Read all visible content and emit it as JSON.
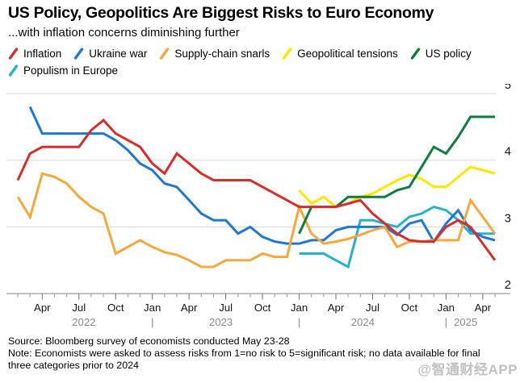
{
  "header": {
    "title": "US Policy, Geopolitics Are Biggest Risks to Euro Economy",
    "subtitle": "...with inflation concerns diminishing further"
  },
  "legend": {
    "items": [
      {
        "label": "Inflation",
        "color": "#d62e2b"
      },
      {
        "label": "Ukraine war",
        "color": "#1e78d2"
      },
      {
        "label": "Supply-chain snarls",
        "color": "#f6a83c"
      },
      {
        "label": "Geopolitical tensions",
        "color": "#ffe600"
      },
      {
        "label": "US policy",
        "color": "#0d7d3e"
      },
      {
        "label": "Populism in Europe",
        "color": "#26b2cf"
      }
    ]
  },
  "footer": {
    "source": "Source: Bloomberg survey of economists conducted May 23-28",
    "note": "Note: Economists were asked to assess risks from 1=no risk to 5=significant risk; no data available for final three categories prior to 2024"
  },
  "watermark": "@智通财经APP",
  "chart_data": {
    "type": "line",
    "title": "US Policy, Geopolitics Are Biggest Risks to Euro Economy",
    "subtitle": "...with inflation concerns diminishing further",
    "xlabel": "",
    "ylabel": "",
    "ylim": [
      2,
      5
    ],
    "grid": "horizontal",
    "legend_position": "top",
    "y_axis": {
      "min": 2,
      "max": 5,
      "ticks": [
        2,
        3,
        4,
        5
      ]
    },
    "month_labels": [
      "Feb 2022",
      "Mar 2022",
      "Apr 2022",
      "May 2022",
      "Jun 2022",
      "Jul 2022",
      "Aug 2022",
      "Sep 2022",
      "Oct 2022",
      "Nov 2022",
      "Dec 2022",
      "Jan 2023",
      "Feb 2023",
      "Mar 2023",
      "Apr 2023",
      "May 2023",
      "Jun 2023",
      "Jul 2023",
      "Aug 2023",
      "Sep 2023",
      "Oct 2023",
      "Nov 2023",
      "Dec 2023",
      "Jan 2024",
      "Feb 2024",
      "Mar 2024",
      "Apr 2024",
      "May 2024",
      "Jun 2024",
      "Jul 2024",
      "Aug 2024",
      "Sep 2024",
      "Oct 2024",
      "Nov 2024",
      "Dec 2024",
      "Jan 2025",
      "Feb 2025",
      "Mar 2025",
      "Apr 2025",
      "May 2025"
    ],
    "x_axis": {
      "tick_month_indices": [
        2,
        5,
        8,
        11,
        14,
        17,
        20,
        23,
        26,
        29,
        32,
        35,
        38
      ],
      "tick_labels": [
        "Apr",
        "Jul",
        "Oct",
        "Jan",
        "Apr",
        "Jul",
        "Oct",
        "Jan",
        "Apr",
        "Jul",
        "Oct",
        "Jan",
        "Apr"
      ],
      "year_labels": [
        "2022",
        "2023",
        "2024",
        "2025"
      ],
      "year_positions": [
        5.4,
        16.6,
        28.2,
        36.6
      ],
      "separator_indices": [
        11,
        23,
        35
      ]
    },
    "series": [
      {
        "id": "inflation",
        "name": "Inflation",
        "color": "#d62e2b",
        "start_index": 0,
        "values": [
          3.7,
          4.1,
          4.2,
          4.2,
          4.2,
          4.2,
          4.45,
          4.6,
          4.4,
          4.3,
          4.2,
          3.95,
          3.8,
          4.1,
          3.95,
          3.8,
          3.7,
          3.7,
          3.7,
          3.7,
          3.6,
          3.5,
          3.4,
          3.3,
          3.3,
          3.3,
          3.3,
          3.35,
          3.4,
          3.2,
          3.05,
          2.9,
          2.8,
          2.78,
          2.78,
          3.0,
          3.1,
          3.0,
          2.75,
          2.5
        ]
      },
      {
        "id": "ukraine-war",
        "name": "Ukraine war",
        "color": "#1e78d2",
        "start_index": 1,
        "values": [
          4.8,
          4.4,
          4.4,
          4.4,
          4.4,
          4.4,
          4.4,
          4.3,
          4.15,
          3.95,
          3.85,
          3.65,
          3.6,
          3.4,
          3.2,
          3.1,
          3.1,
          2.9,
          3.0,
          2.85,
          2.78,
          2.75,
          2.75,
          2.8,
          2.8,
          2.95,
          3.0,
          3.0,
          3.0,
          3.0,
          2.88,
          3.05,
          3.1,
          2.78,
          3.05,
          3.25,
          2.95,
          2.85,
          2.8
        ]
      },
      {
        "id": "supply-chain-snarls",
        "name": "Supply-chain snarls",
        "color": "#f6a83c",
        "start_index": 0,
        "values": [
          3.45,
          3.15,
          3.8,
          3.75,
          3.65,
          3.45,
          3.3,
          3.2,
          2.6,
          2.7,
          2.8,
          2.7,
          2.62,
          2.58,
          2.5,
          2.4,
          2.4,
          2.5,
          2.5,
          2.5,
          2.6,
          2.55,
          2.55,
          3.3,
          2.9,
          2.75,
          2.78,
          2.82,
          2.88,
          2.95,
          3.0,
          2.7,
          2.78,
          2.78,
          2.8,
          2.8,
          2.8,
          3.4,
          3.15,
          2.9
        ]
      },
      {
        "id": "geopolitical-tensions",
        "name": "Geopolitical tensions",
        "color": "#ffe600",
        "start_index": 23,
        "values": [
          3.55,
          3.35,
          3.45,
          3.3,
          3.35,
          3.45,
          3.5,
          3.6,
          3.7,
          3.78,
          3.72,
          3.6,
          3.6,
          3.75,
          3.9,
          3.85,
          3.8
        ]
      },
      {
        "id": "us-policy",
        "name": "US policy",
        "color": "#0d7d3e",
        "start_index": 23,
        "values": [
          2.9,
          3.3,
          3.3,
          3.3,
          3.45,
          3.45,
          3.45,
          3.45,
          3.55,
          3.6,
          3.9,
          4.2,
          4.1,
          4.35,
          4.65,
          4.65,
          4.65
        ]
      },
      {
        "id": "populism-in-europe",
        "name": "Populism in Europe",
        "color": "#26b2cf",
        "start_index": 23,
        "values": [
          2.6,
          2.6,
          2.6,
          2.5,
          2.4,
          3.1,
          3.1,
          3.05,
          3.0,
          3.15,
          3.2,
          3.3,
          3.25,
          3.1,
          2.9,
          2.9,
          2.9
        ]
      }
    ],
    "source": "Source: Bloomberg survey of economists conducted May 23-28",
    "note": "Note: Economists were asked to assess risks from 1=no risk to 5=significant risk; no data available for final three categories prior to 2024"
  }
}
